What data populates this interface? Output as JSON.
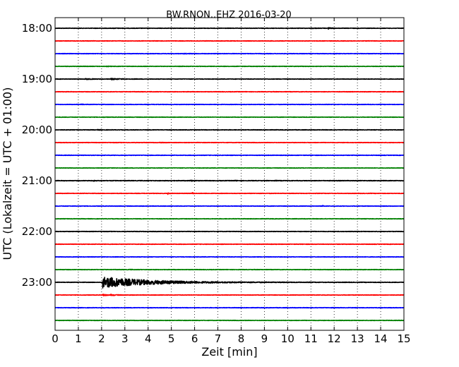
{
  "chart_data": {
    "type": "line",
    "title": "BW.RNON..EHZ 2016-03-20",
    "xlabel": "Zeit  [min]",
    "ylabel": "UTC (Lokalzeit = UTC + 01:00)",
    "xlim": [
      0,
      15
    ],
    "x_ticks": [
      "0",
      "1",
      "2",
      "3",
      "4",
      "5",
      "6",
      "7",
      "8",
      "9",
      "10",
      "11",
      "12",
      "13",
      "14",
      "15"
    ],
    "y_ticks": [
      {
        "label": "18:00",
        "row": 0
      },
      {
        "label": "19:00",
        "row": 4
      },
      {
        "label": "20:00",
        "row": 8
      },
      {
        "label": "21:00",
        "row": 12
      },
      {
        "label": "22:00",
        "row": 16
      },
      {
        "label": "23:00",
        "row": 20
      }
    ],
    "grid": "vertical dotted",
    "trace_colors": [
      "#000000",
      "#ff0000",
      "#0000ff",
      "#008000"
    ],
    "series": [
      {
        "start": "18:00",
        "noise": 0.35,
        "events": [
          {
            "t": 2.5,
            "amp": 0.3,
            "dur": 0.5
          },
          {
            "t": 11.0,
            "amp": 0.5,
            "dur": 0.5
          },
          {
            "t": 11.75,
            "amp": 1.3,
            "dur": 0.25
          }
        ]
      },
      {
        "start": "18:15",
        "noise": 0.35,
        "events": []
      },
      {
        "start": "18:30",
        "noise": 0.35,
        "events": [
          {
            "t": 5.5,
            "amp": 0.25,
            "dur": 1.0
          }
        ]
      },
      {
        "start": "18:45",
        "noise": 0.35,
        "events": [
          {
            "t": 1.0,
            "amp": 0.35,
            "dur": 0.4
          },
          {
            "t": 2.2,
            "amp": 0.3,
            "dur": 0.4
          }
        ]
      },
      {
        "start": "19:00",
        "noise": 0.35,
        "events": [
          {
            "t": 1.3,
            "amp": 0.6,
            "dur": 0.8
          },
          {
            "t": 2.4,
            "amp": 0.8,
            "dur": 1.1
          }
        ]
      },
      {
        "start": "19:15",
        "noise": 0.35,
        "events": []
      },
      {
        "start": "19:30",
        "noise": 0.35,
        "events": [
          {
            "t": 1.1,
            "amp": 0.45,
            "dur": 0.4
          }
        ]
      },
      {
        "start": "19:45",
        "noise": 0.35,
        "events": [
          {
            "t": 2.0,
            "amp": 0.25,
            "dur": 0.3
          }
        ]
      },
      {
        "start": "20:00",
        "noise": 0.35,
        "events": [
          {
            "t": 1.8,
            "amp": 0.3,
            "dur": 0.5
          }
        ]
      },
      {
        "start": "20:15",
        "noise": 0.35,
        "events": [
          {
            "t": 4.5,
            "amp": 0.25,
            "dur": 0.3
          }
        ]
      },
      {
        "start": "20:30",
        "noise": 0.35,
        "events": []
      },
      {
        "start": "20:45",
        "noise": 0.35,
        "events": []
      },
      {
        "start": "21:00",
        "noise": 0.4,
        "events": [
          {
            "t": 1.65,
            "amp": 0.8,
            "dur": 0.1
          },
          {
            "t": 5.8,
            "amp": 0.7,
            "dur": 0.4
          },
          {
            "t": 7.7,
            "amp": 0.5,
            "dur": 0.3
          },
          {
            "t": 9.4,
            "amp": 0.4,
            "dur": 0.3
          }
        ]
      },
      {
        "start": "21:15",
        "noise": 0.35,
        "events": [
          {
            "t": 4.85,
            "amp": 1.3,
            "dur": 0.15
          },
          {
            "t": 5.9,
            "amp": 1.1,
            "dur": 0.15
          }
        ]
      },
      {
        "start": "21:30",
        "noise": 0.35,
        "events": [
          {
            "t": 11.5,
            "amp": 0.8,
            "dur": 0.1
          }
        ]
      },
      {
        "start": "21:45",
        "noise": 0.35,
        "events": []
      },
      {
        "start": "22:00",
        "noise": 0.35,
        "events": []
      },
      {
        "start": "22:15",
        "noise": 0.35,
        "events": []
      },
      {
        "start": "22:30",
        "noise": 0.35,
        "events": []
      },
      {
        "start": "22:45",
        "noise": 0.35,
        "events": [
          {
            "t": 3.2,
            "amp": 0.3,
            "dur": 0.3
          }
        ]
      },
      {
        "start": "23:00",
        "noise": 0.35,
        "events": [
          {
            "t": 2.05,
            "amp": 7.8,
            "dur": 6.0
          }
        ]
      },
      {
        "start": "23:15",
        "noise": 0.35,
        "events": [
          {
            "t": 2.05,
            "amp": 1.8,
            "dur": 0.3
          },
          {
            "t": 2.4,
            "amp": 0.8,
            "dur": 0.6
          }
        ]
      },
      {
        "start": "23:30",
        "noise": 0.35,
        "events": []
      },
      {
        "start": "23:45",
        "noise": 0.35,
        "events": []
      }
    ]
  }
}
